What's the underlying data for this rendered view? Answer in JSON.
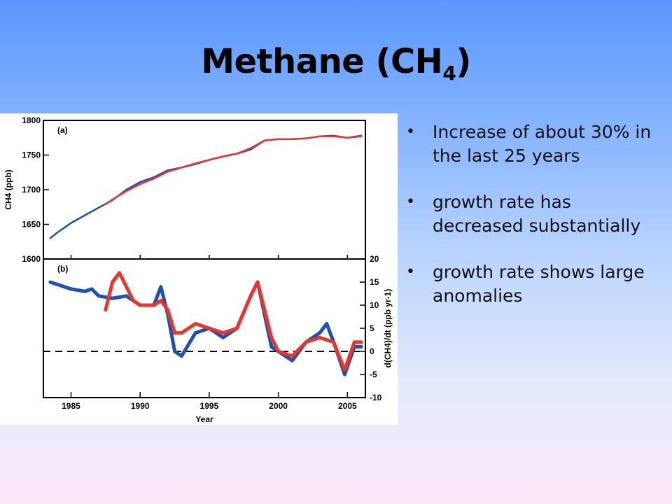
{
  "slide": {
    "title_main": "Methane (CH",
    "title_sub": "4",
    "title_end": ")"
  },
  "bullets": [
    "Increase of about 30% in the last 25 years",
    "growth rate has decreased substantially",
    "growth rate shows large anomalies"
  ],
  "colors": {
    "series_a": "#1f4fb0",
    "series_b": "#e8352e",
    "background_top": "#5b97ff",
    "background_bottom": "#fbe8f6"
  },
  "chart_data": [
    {
      "type": "line",
      "panel_label": "(a)",
      "ylabel": "CH4 (ppb)",
      "ylim": [
        1600,
        1800
      ],
      "xlim": [
        1983,
        2006.3
      ],
      "yticks": [
        "1600",
        "1650",
        "1700",
        "1750",
        "1800"
      ],
      "series": [
        {
          "x": [
            1983.5,
            1984,
            1985,
            1986,
            1987,
            1988,
            1989,
            1990,
            1991,
            1992,
            1993,
            1994,
            1995,
            1996,
            1997,
            1998,
            1999,
            2000,
            2001,
            2002,
            2003,
            2004,
            2005,
            2006
          ],
          "values": [
            1630,
            1638,
            1652,
            1663,
            1674,
            1685,
            1700,
            1711,
            1718,
            1728,
            1732,
            1737,
            1743,
            1748,
            1752,
            1758,
            1771,
            1773,
            1773,
            1774,
            1777,
            1778,
            1775,
            1778
          ]
        },
        {
          "x": [
            1987.5,
            1988,
            1989,
            1990,
            1991,
            1992,
            1993,
            1994,
            1995,
            1996,
            1997,
            1998,
            1999,
            2000,
            2001,
            2002,
            2003,
            2004,
            2005,
            2006
          ],
          "values": [
            1679,
            1686,
            1698,
            1708,
            1716,
            1726,
            1732,
            1738,
            1743,
            1748,
            1752,
            1760,
            1771,
            1773,
            1773,
            1774,
            1777,
            1777,
            1775,
            1777
          ]
        }
      ]
    },
    {
      "type": "line",
      "panel_label": "(b)",
      "xlabel": "Year",
      "ylabel": "d(CH4)/dt (ppb yr-1)",
      "ylim": [
        -10,
        20
      ],
      "xlim": [
        1983,
        2006.3
      ],
      "xticks": [
        "1985",
        "1990",
        "1995",
        "2000",
        "2005"
      ],
      "yticks": [
        "-10",
        "-5",
        "0",
        "5",
        "10",
        "15",
        "20"
      ],
      "zero_line": "dashed",
      "series": [
        {
          "x": [
            1983.5,
            1984,
            1985,
            1986,
            1986.5,
            1987,
            1988,
            1989,
            1990,
            1991,
            1991.5,
            1992,
            1992.5,
            1993,
            1994,
            1995,
            1996,
            1997,
            1998,
            1998.5,
            1999,
            1999.5,
            2000,
            2001,
            2002,
            2003,
            2003.5,
            2004,
            2004.8,
            2005.5,
            2006
          ],
          "values": [
            15,
            14.5,
            13.5,
            13,
            13.5,
            12,
            11.5,
            12,
            10,
            10,
            14,
            8,
            0,
            -1,
            4,
            5,
            3,
            5,
            12,
            15,
            8,
            1,
            0,
            -2,
            2,
            4,
            6,
            2,
            -5,
            1,
            1
          ]
        },
        {
          "x": [
            1987.5,
            1988,
            1988.5,
            1989,
            1989.5,
            1990,
            1991,
            1991.5,
            1992,
            1992.5,
            1993,
            1994,
            1995,
            1996,
            1997,
            1998,
            1998.5,
            1999,
            1999.5,
            2000,
            2001,
            2002,
            2003,
            2004,
            2004.8,
            2005.5,
            2006
          ],
          "values": [
            9,
            15,
            17,
            14,
            11,
            10,
            10,
            11,
            9,
            4,
            4,
            6,
            5,
            4,
            5,
            12,
            15,
            9,
            3,
            0,
            -1,
            2,
            3,
            2,
            -4,
            2,
            2
          ]
        }
      ]
    }
  ]
}
